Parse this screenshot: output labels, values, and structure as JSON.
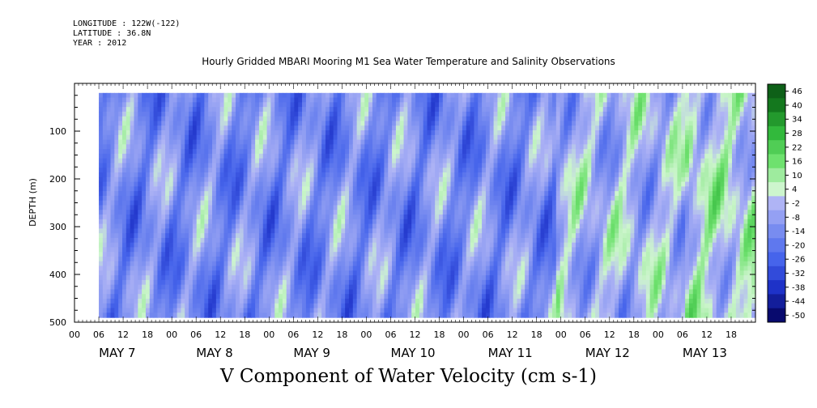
{
  "header": {
    "longitude": "LONGITUDE : 122W(-122)",
    "latitude": "LATITUDE : 36.8N",
    "year": "YEAR : 2012"
  },
  "chart_data": {
    "type": "heatmap",
    "title": "Hourly Gridded MBARI Mooring M1 Sea Water Temperature and Salinity Observations",
    "xlabel": "V Component of Water Velocity (cm s-1)",
    "ylabel": "DEPTH (m)",
    "ylim": [
      500,
      0
    ],
    "y_ticks": [
      100,
      200,
      300,
      400,
      500
    ],
    "x_hours": [
      "00",
      "06",
      "12",
      "18",
      "00",
      "06",
      "12",
      "18",
      "00",
      "06",
      "12",
      "18",
      "00",
      "06",
      "12",
      "18",
      "00",
      "06",
      "12",
      "18",
      "00",
      "06",
      "12",
      "18",
      "00",
      "06",
      "12",
      "18"
    ],
    "dates": [
      "MAY  7",
      "MAY  8",
      "MAY  9",
      "MAY 10",
      "MAY 11",
      "MAY 12",
      "MAY 13"
    ],
    "x_range_hours": [
      0,
      168
    ],
    "data_depth_range": [
      20,
      490
    ],
    "data_start_hour": 6,
    "colorbar": {
      "min": -50,
      "max": 50,
      "labels": [
        "46",
        "40",
        "34",
        "28",
        "22",
        "16",
        "10",
        "4",
        "-2",
        "-8",
        "-14",
        "-20",
        "-26",
        "-32",
        "-38",
        "-44",
        "-50"
      ]
    },
    "grid": false
  }
}
